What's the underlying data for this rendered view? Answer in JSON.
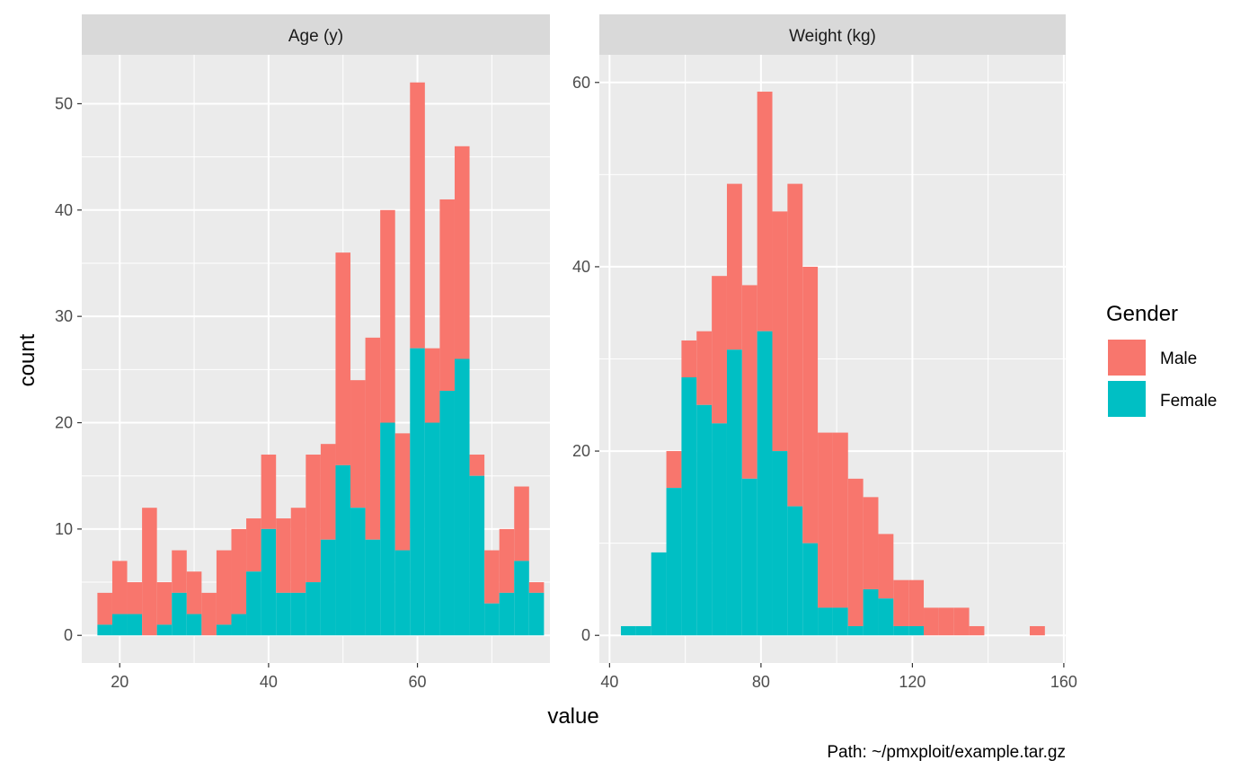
{
  "chart_data": {
    "type": "bar",
    "subtype": "stacked-histogram-facets",
    "xlabel": "value",
    "ylabel": "count",
    "caption": "Path: ~/pmxploit/example.tar.gz",
    "legend": {
      "title": "Gender",
      "placement": "right",
      "entries": [
        {
          "name": "Male",
          "color": "#F8766D"
        },
        {
          "name": "Female",
          "color": "#00BFC4"
        }
      ]
    },
    "grid": true,
    "colors": {
      "panel_bg": "#EBEBEB",
      "strip_bg": "#D9D9D9",
      "grid": "#FFFFFF"
    },
    "facets": [
      {
        "strip": "Age (y)",
        "xlim": [
          14.9,
          77.8
        ],
        "ylim": [
          -2.6,
          54.6
        ],
        "x_ticks": [
          20,
          40,
          60
        ],
        "y_ticks": [
          0,
          10,
          20,
          30,
          40,
          50
        ],
        "bin_width": 2,
        "bin_start": 17,
        "female": [
          1,
          2,
          2,
          0,
          1,
          4,
          2,
          0,
          1,
          2,
          6,
          10,
          4,
          4,
          5,
          9,
          16,
          12,
          9,
          20,
          8,
          27,
          20,
          23,
          26,
          15,
          3,
          4,
          7,
          4
        ],
        "total": [
          4,
          7,
          5,
          12,
          5,
          8,
          6,
          4,
          8,
          10,
          11,
          17,
          11,
          12,
          17,
          18,
          36,
          24,
          28,
          40,
          19,
          52,
          27,
          41,
          46,
          17,
          8,
          10,
          14,
          5
        ]
      },
      {
        "strip": "Weight (kg)",
        "xlim": [
          37.3,
          160.5
        ],
        "ylim": [
          -3.0,
          63.0
        ],
        "x_ticks": [
          40,
          80,
          120,
          160
        ],
        "y_ticks": [
          0,
          20,
          40,
          60
        ],
        "bin_width": 4,
        "bin_start": 43,
        "female": [
          1,
          1,
          9,
          16,
          28,
          25,
          23,
          31,
          17,
          33,
          20,
          14,
          10,
          3,
          3,
          1,
          5,
          4,
          1,
          1,
          0,
          0,
          0,
          0,
          0,
          0,
          0,
          0
        ],
        "total": [
          1,
          1,
          9,
          20,
          32,
          33,
          39,
          49,
          38,
          59,
          46,
          49,
          40,
          22,
          22,
          17,
          15,
          11,
          6,
          6,
          3,
          3,
          3,
          1,
          0,
          0,
          0,
          1
        ]
      }
    ]
  }
}
